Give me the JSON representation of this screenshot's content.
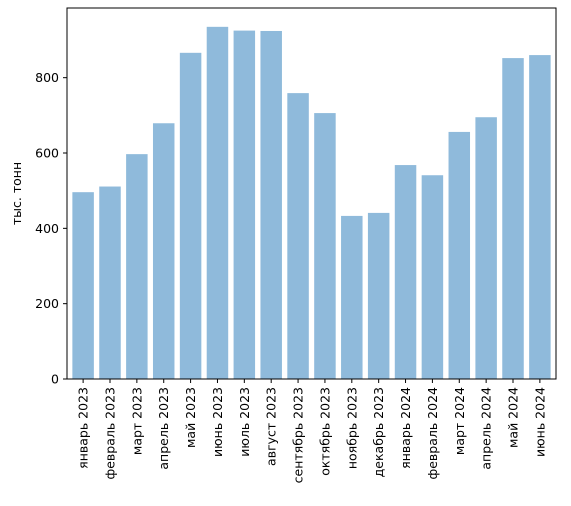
{
  "chart_data": {
    "type": "bar",
    "title": "",
    "xlabel": "",
    "ylabel": "тыс. тонн",
    "ylim": [
      0,
      985
    ],
    "yticks": [
      0,
      200,
      400,
      600,
      800
    ],
    "grid": false,
    "legend": "none",
    "bar_color": "#8fbadb",
    "categories": [
      "январь 2023",
      "февраль 2023",
      "март 2023",
      "апрель 2023",
      "май 2023",
      "июнь 2023",
      "июль 2023",
      "август 2023",
      "сентябрь 2023",
      "октябрь 2023",
      "ноябрь 2023",
      "декабрь 2023",
      "январь 2024",
      "февраль 2024",
      "март 2024",
      "апрель 2024",
      "май 2024",
      "июнь 2024"
    ],
    "values": [
      496,
      511,
      597,
      679,
      866,
      935,
      925,
      924,
      759,
      706,
      433,
      441,
      568,
      541,
      656,
      695,
      852,
      860
    ]
  }
}
